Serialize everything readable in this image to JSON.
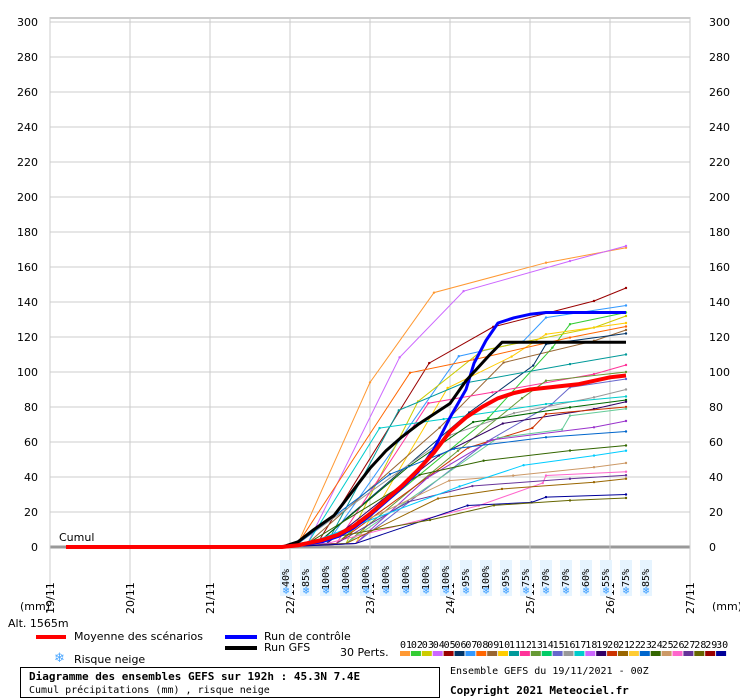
{
  "chart_data": {
    "type": "line",
    "ylim": [
      0,
      300
    ],
    "y_ticks": [
      0,
      20,
      40,
      60,
      80,
      100,
      120,
      140,
      160,
      180,
      200,
      220,
      240,
      260,
      280,
      300
    ],
    "x_ticks": [
      "19/11",
      "20/11",
      "21/11",
      "22/11",
      "23/11",
      "24/11",
      "25/11",
      "26/11",
      "27/11"
    ],
    "x_range_days": [
      0,
      8
    ],
    "xlabel": "(mm)",
    "ylabel": "(mm)",
    "cumul_label": "Cumul",
    "alt_label": "Alt. 1565m",
    "snow_risk": [
      {
        "t": 2.95,
        "pct": "40%"
      },
      {
        "t": 3.2,
        "pct": "85%"
      },
      {
        "t": 3.45,
        "pct": "100%"
      },
      {
        "t": 3.7,
        "pct": "100%"
      },
      {
        "t": 3.95,
        "pct": "100%"
      },
      {
        "t": 4.2,
        "pct": "100%"
      },
      {
        "t": 4.45,
        "pct": "100%"
      },
      {
        "t": 4.7,
        "pct": "100%"
      },
      {
        "t": 4.95,
        "pct": "100%"
      },
      {
        "t": 5.2,
        "pct": "95%"
      },
      {
        "t": 5.45,
        "pct": "100%"
      },
      {
        "t": 5.7,
        "pct": "95%"
      },
      {
        "t": 5.95,
        "pct": "75%"
      },
      {
        "t": 6.2,
        "pct": "70%"
      },
      {
        "t": 6.45,
        "pct": "70%"
      },
      {
        "t": 6.7,
        "pct": "60%"
      },
      {
        "t": 6.95,
        "pct": "55%"
      },
      {
        "t": 7.2,
        "pct": "75%"
      },
      {
        "t": 7.45,
        "pct": "85%"
      }
    ],
    "mean": {
      "name": "Moyenne des scénarios",
      "color": "#ff0000",
      "points": [
        [
          0.2,
          0
        ],
        [
          2.9,
          0
        ],
        [
          3.1,
          1
        ],
        [
          3.4,
          4
        ],
        [
          3.6,
          7
        ],
        [
          3.8,
          12
        ],
        [
          4.0,
          19
        ],
        [
          4.2,
          27
        ],
        [
          4.4,
          35
        ],
        [
          4.6,
          44
        ],
        [
          4.8,
          54
        ],
        [
          5.0,
          66
        ],
        [
          5.2,
          74
        ],
        [
          5.4,
          80
        ],
        [
          5.6,
          85
        ],
        [
          5.8,
          88
        ],
        [
          6.0,
          90
        ],
        [
          6.2,
          91
        ],
        [
          6.4,
          92
        ],
        [
          6.6,
          93
        ],
        [
          6.8,
          95
        ],
        [
          7.0,
          97
        ],
        [
          7.2,
          98
        ]
      ]
    },
    "control": {
      "name": "Run de contrôle",
      "color": "#0000ff",
      "points": [
        [
          2.9,
          0
        ],
        [
          3.1,
          1
        ],
        [
          3.4,
          3
        ],
        [
          3.6,
          6
        ],
        [
          3.8,
          11
        ],
        [
          4.0,
          18
        ],
        [
          4.2,
          26
        ],
        [
          4.4,
          34
        ],
        [
          4.6,
          43
        ],
        [
          4.8,
          56
        ],
        [
          5.0,
          74
        ],
        [
          5.2,
          90
        ],
        [
          5.3,
          105
        ],
        [
          5.45,
          118
        ],
        [
          5.6,
          128
        ],
        [
          5.8,
          131
        ],
        [
          6.0,
          133
        ],
        [
          6.2,
          134
        ],
        [
          6.6,
          134
        ],
        [
          7.0,
          134
        ],
        [
          7.2,
          134
        ]
      ]
    },
    "gfs": {
      "name": "Run GFS",
      "color": "#000000",
      "points": [
        [
          2.9,
          0
        ],
        [
          3.1,
          3
        ],
        [
          3.3,
          10
        ],
        [
          3.55,
          18
        ],
        [
          3.8,
          33
        ],
        [
          4.0,
          45
        ],
        [
          4.2,
          55
        ],
        [
          4.4,
          63
        ],
        [
          4.6,
          70
        ],
        [
          4.8,
          76
        ],
        [
          5.0,
          82
        ],
        [
          5.2,
          95
        ],
        [
          5.4,
          105
        ],
        [
          5.5,
          110
        ],
        [
          5.65,
          117
        ],
        [
          6.0,
          117
        ],
        [
          6.4,
          117
        ],
        [
          6.8,
          117
        ],
        [
          7.2,
          117
        ]
      ]
    },
    "perturbations": [
      {
        "color": "#ff9933",
        "final": 171
      },
      {
        "color": "#cc66ff",
        "final": 172
      },
      {
        "color": "#990000",
        "final": 148
      },
      {
        "color": "#3399ff",
        "final": 138
      },
      {
        "color": "#33cc33",
        "final": 134
      },
      {
        "color": "#cccc00",
        "final": 132
      },
      {
        "color": "#ffcc00",
        "final": 128
      },
      {
        "color": "#ff6600",
        "final": 126
      },
      {
        "color": "#996633",
        "final": 124
      },
      {
        "color": "#003366",
        "final": 122
      },
      {
        "color": "#009999",
        "final": 110
      },
      {
        "color": "#ff3399",
        "final": 104
      },
      {
        "color": "#669933",
        "final": 100
      },
      {
        "color": "#6666cc",
        "final": 96
      },
      {
        "color": "#999999",
        "final": 90
      },
      {
        "color": "#00cccc",
        "final": 86
      },
      {
        "color": "#006600",
        "final": 84
      },
      {
        "color": "#330066",
        "final": 83
      },
      {
        "color": "#cc3300",
        "final": 80
      },
      {
        "color": "#66cc99",
        "final": 79
      },
      {
        "color": "#9933cc",
        "final": 72
      },
      {
        "color": "#0066cc",
        "final": 66
      },
      {
        "color": "#336600",
        "final": 58
      },
      {
        "color": "#cc9966",
        "final": 48
      },
      {
        "color": "#ff66cc",
        "final": 43
      },
      {
        "color": "#663399",
        "final": 41
      },
      {
        "color": "#996600",
        "final": 39
      },
      {
        "color": "#000099",
        "final": 30
      },
      {
        "color": "#666600",
        "final": 28
      },
      {
        "color": "#00ccff",
        "final": 55
      }
    ]
  },
  "legend": {
    "mean_label": "Moyenne des scénarios",
    "control_label": "Run de contrôle",
    "gfs_label": "Run GFS",
    "snow_label": "Risque neige",
    "perts_label": "30 Perts.",
    "pert_numbers": [
      "01",
      "02",
      "03",
      "04",
      "05",
      "06",
      "07",
      "08",
      "09",
      "10",
      "11",
      "12",
      "13",
      "14",
      "15",
      "16",
      "17",
      "18",
      "19",
      "20",
      "21",
      "22",
      "23",
      "24",
      "25",
      "26",
      "27",
      "28",
      "29",
      "30"
    ],
    "pert_colors": [
      "#ff9933",
      "#33cc33",
      "#cccc00",
      "#cc66ff",
      "#990000",
      "#003366",
      "#3399ff",
      "#ff6600",
      "#996633",
      "#ffcc00",
      "#009999",
      "#ff3399",
      "#669933",
      "#00cc66",
      "#6666cc",
      "#999999",
      "#00cccc",
      "#cc66ff",
      "#330066",
      "#cc3300",
      "#996600",
      "#ffcc33",
      "#0066cc",
      "#336600",
      "#cc9966",
      "#ff66cc",
      "#663399",
      "#666600",
      "#990000",
      "#000099"
    ]
  },
  "title": {
    "line1": "Diagramme des ensembles GEFS sur 192h : 45.3N 7.4E",
    "line2": "Cumul précipitations (mm) , risque neige"
  },
  "footer": {
    "ensemble": "Ensemble GEFS du 19/11/2021 - 00Z",
    "copyright": "Copyright 2021 Meteociel.fr"
  }
}
